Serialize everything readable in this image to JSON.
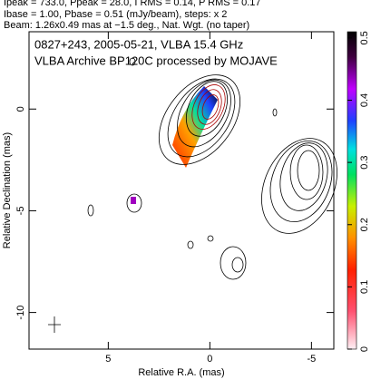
{
  "chart_data": {
    "type": "contour",
    "header": [
      "Ipeak = 733.0, Ppeak = 28.0, I RMS = 0.14, P RMS = 0.17",
      "Ibase = 1.00, Pbase = 0.51 (mJy/beam), steps: x 2",
      "Beam: 1.26x0.49 mas at −1.5 deg., Nat. Wgt. (no taper)"
    ],
    "annotations": [
      "0827+243, 2005-05-21, VLBA 15.4 GHz",
      "VLBA Archive BP120C processed by MOJAVE"
    ],
    "xlabel": "Relative R.A. (mas)",
    "ylabel": "Relative Declination (mas)",
    "xlim": [
      8.9,
      -6.1
    ],
    "xticks": [
      5,
      0,
      -5
    ],
    "ylim": [
      -11.8,
      3.8
    ],
    "yticks": [
      0,
      -5,
      -10
    ],
    "clim": [
      0,
      0.51
    ],
    "cticks": [
      0,
      0.1,
      0.2,
      0.3,
      0.4,
      0.5
    ]
  }
}
